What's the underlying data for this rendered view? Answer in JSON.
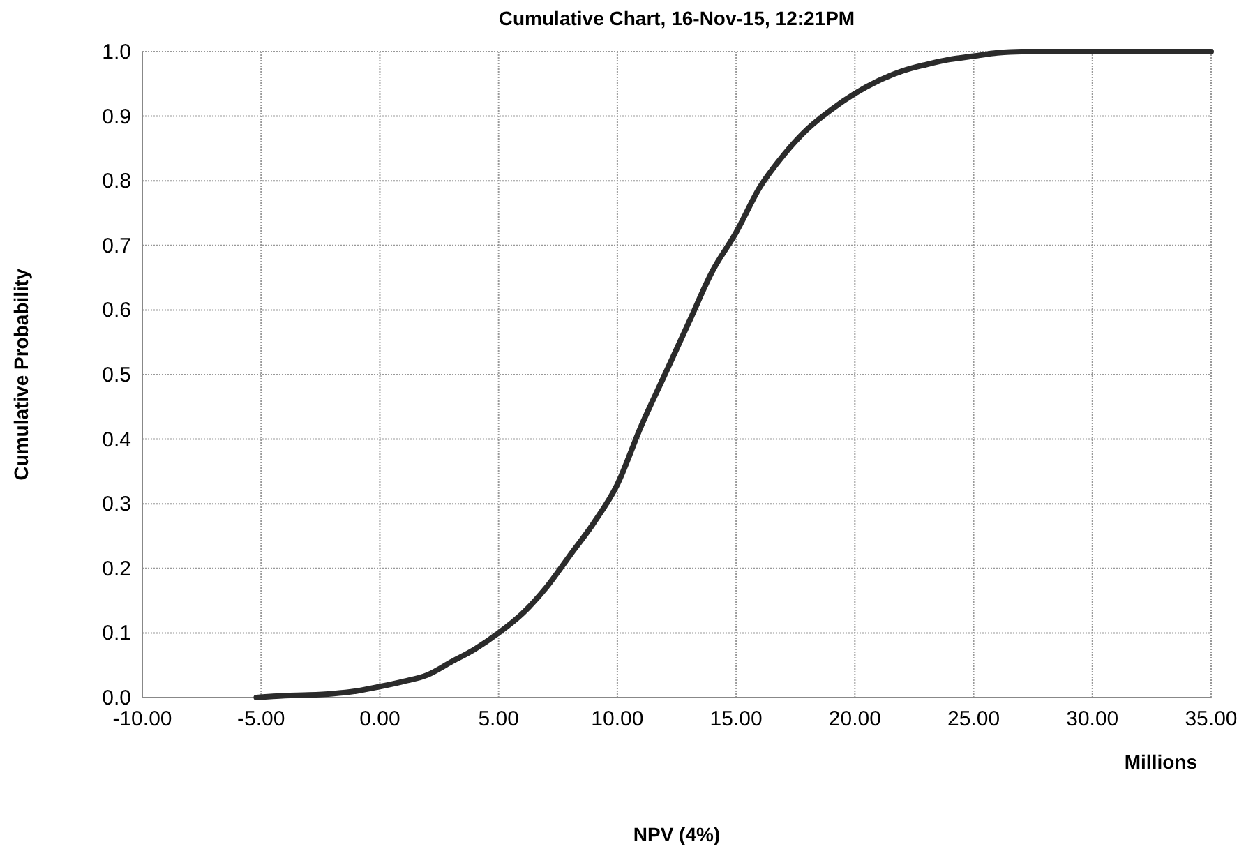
{
  "chart_data": {
    "type": "line",
    "title": "Cumulative Chart, 16-Nov-15, 12:21PM",
    "xlabel": "NPV (4%)",
    "ylabel": "Cumulative Probability",
    "annotations": [
      "Millions"
    ],
    "x": [
      -5.2,
      -4,
      -3,
      -2,
      -1,
      0,
      1,
      2,
      3,
      4,
      5,
      6,
      7,
      8,
      9,
      10,
      11,
      12,
      13,
      14,
      15,
      16,
      17,
      18,
      19,
      20,
      21,
      22,
      23,
      24,
      25,
      26,
      27,
      35
    ],
    "series": [
      {
        "color": "#2b2b2b",
        "values": [
          0,
          0.003,
          0.004,
          0.006,
          0.01,
          0.017,
          0.025,
          0.035,
          0.055,
          0.075,
          0.1,
          0.13,
          0.17,
          0.22,
          0.27,
          0.33,
          0.42,
          0.5,
          0.58,
          0.66,
          0.72,
          0.79,
          0.84,
          0.88,
          0.91,
          0.935,
          0.955,
          0.97,
          0.98,
          0.988,
          0.993,
          0.998,
          1,
          1
        ]
      }
    ],
    "xlim": [
      -10,
      35
    ],
    "ylim": [
      0,
      1
    ],
    "xticks": [
      {
        "value": -10,
        "label": "-10.00"
      },
      {
        "value": -5,
        "label": "-5.00"
      },
      {
        "value": 0,
        "label": "0.00"
      },
      {
        "value": 5,
        "label": "5.00"
      },
      {
        "value": 10,
        "label": "10.00"
      },
      {
        "value": 15,
        "label": "15.00"
      },
      {
        "value": 20,
        "label": "20.00"
      },
      {
        "value": 25,
        "label": "25.00"
      },
      {
        "value": 30,
        "label": "30.00"
      },
      {
        "value": 35,
        "label": "35.00"
      }
    ],
    "yticks": [
      {
        "value": 0,
        "label": "0.0"
      },
      {
        "value": 0.1,
        "label": "0.1"
      },
      {
        "value": 0.2,
        "label": "0.2"
      },
      {
        "value": 0.3,
        "label": "0.3"
      },
      {
        "value": 0.4,
        "label": "0.4"
      },
      {
        "value": 0.5,
        "label": "0.5"
      },
      {
        "value": 0.6,
        "label": "0.6"
      },
      {
        "value": 0.7,
        "label": "0.7"
      },
      {
        "value": 0.8,
        "label": "0.8"
      },
      {
        "value": 0.9,
        "label": "0.9"
      },
      {
        "value": 1,
        "label": "1.0"
      }
    ],
    "grid": true,
    "marker": "none",
    "line_style": "solid"
  }
}
